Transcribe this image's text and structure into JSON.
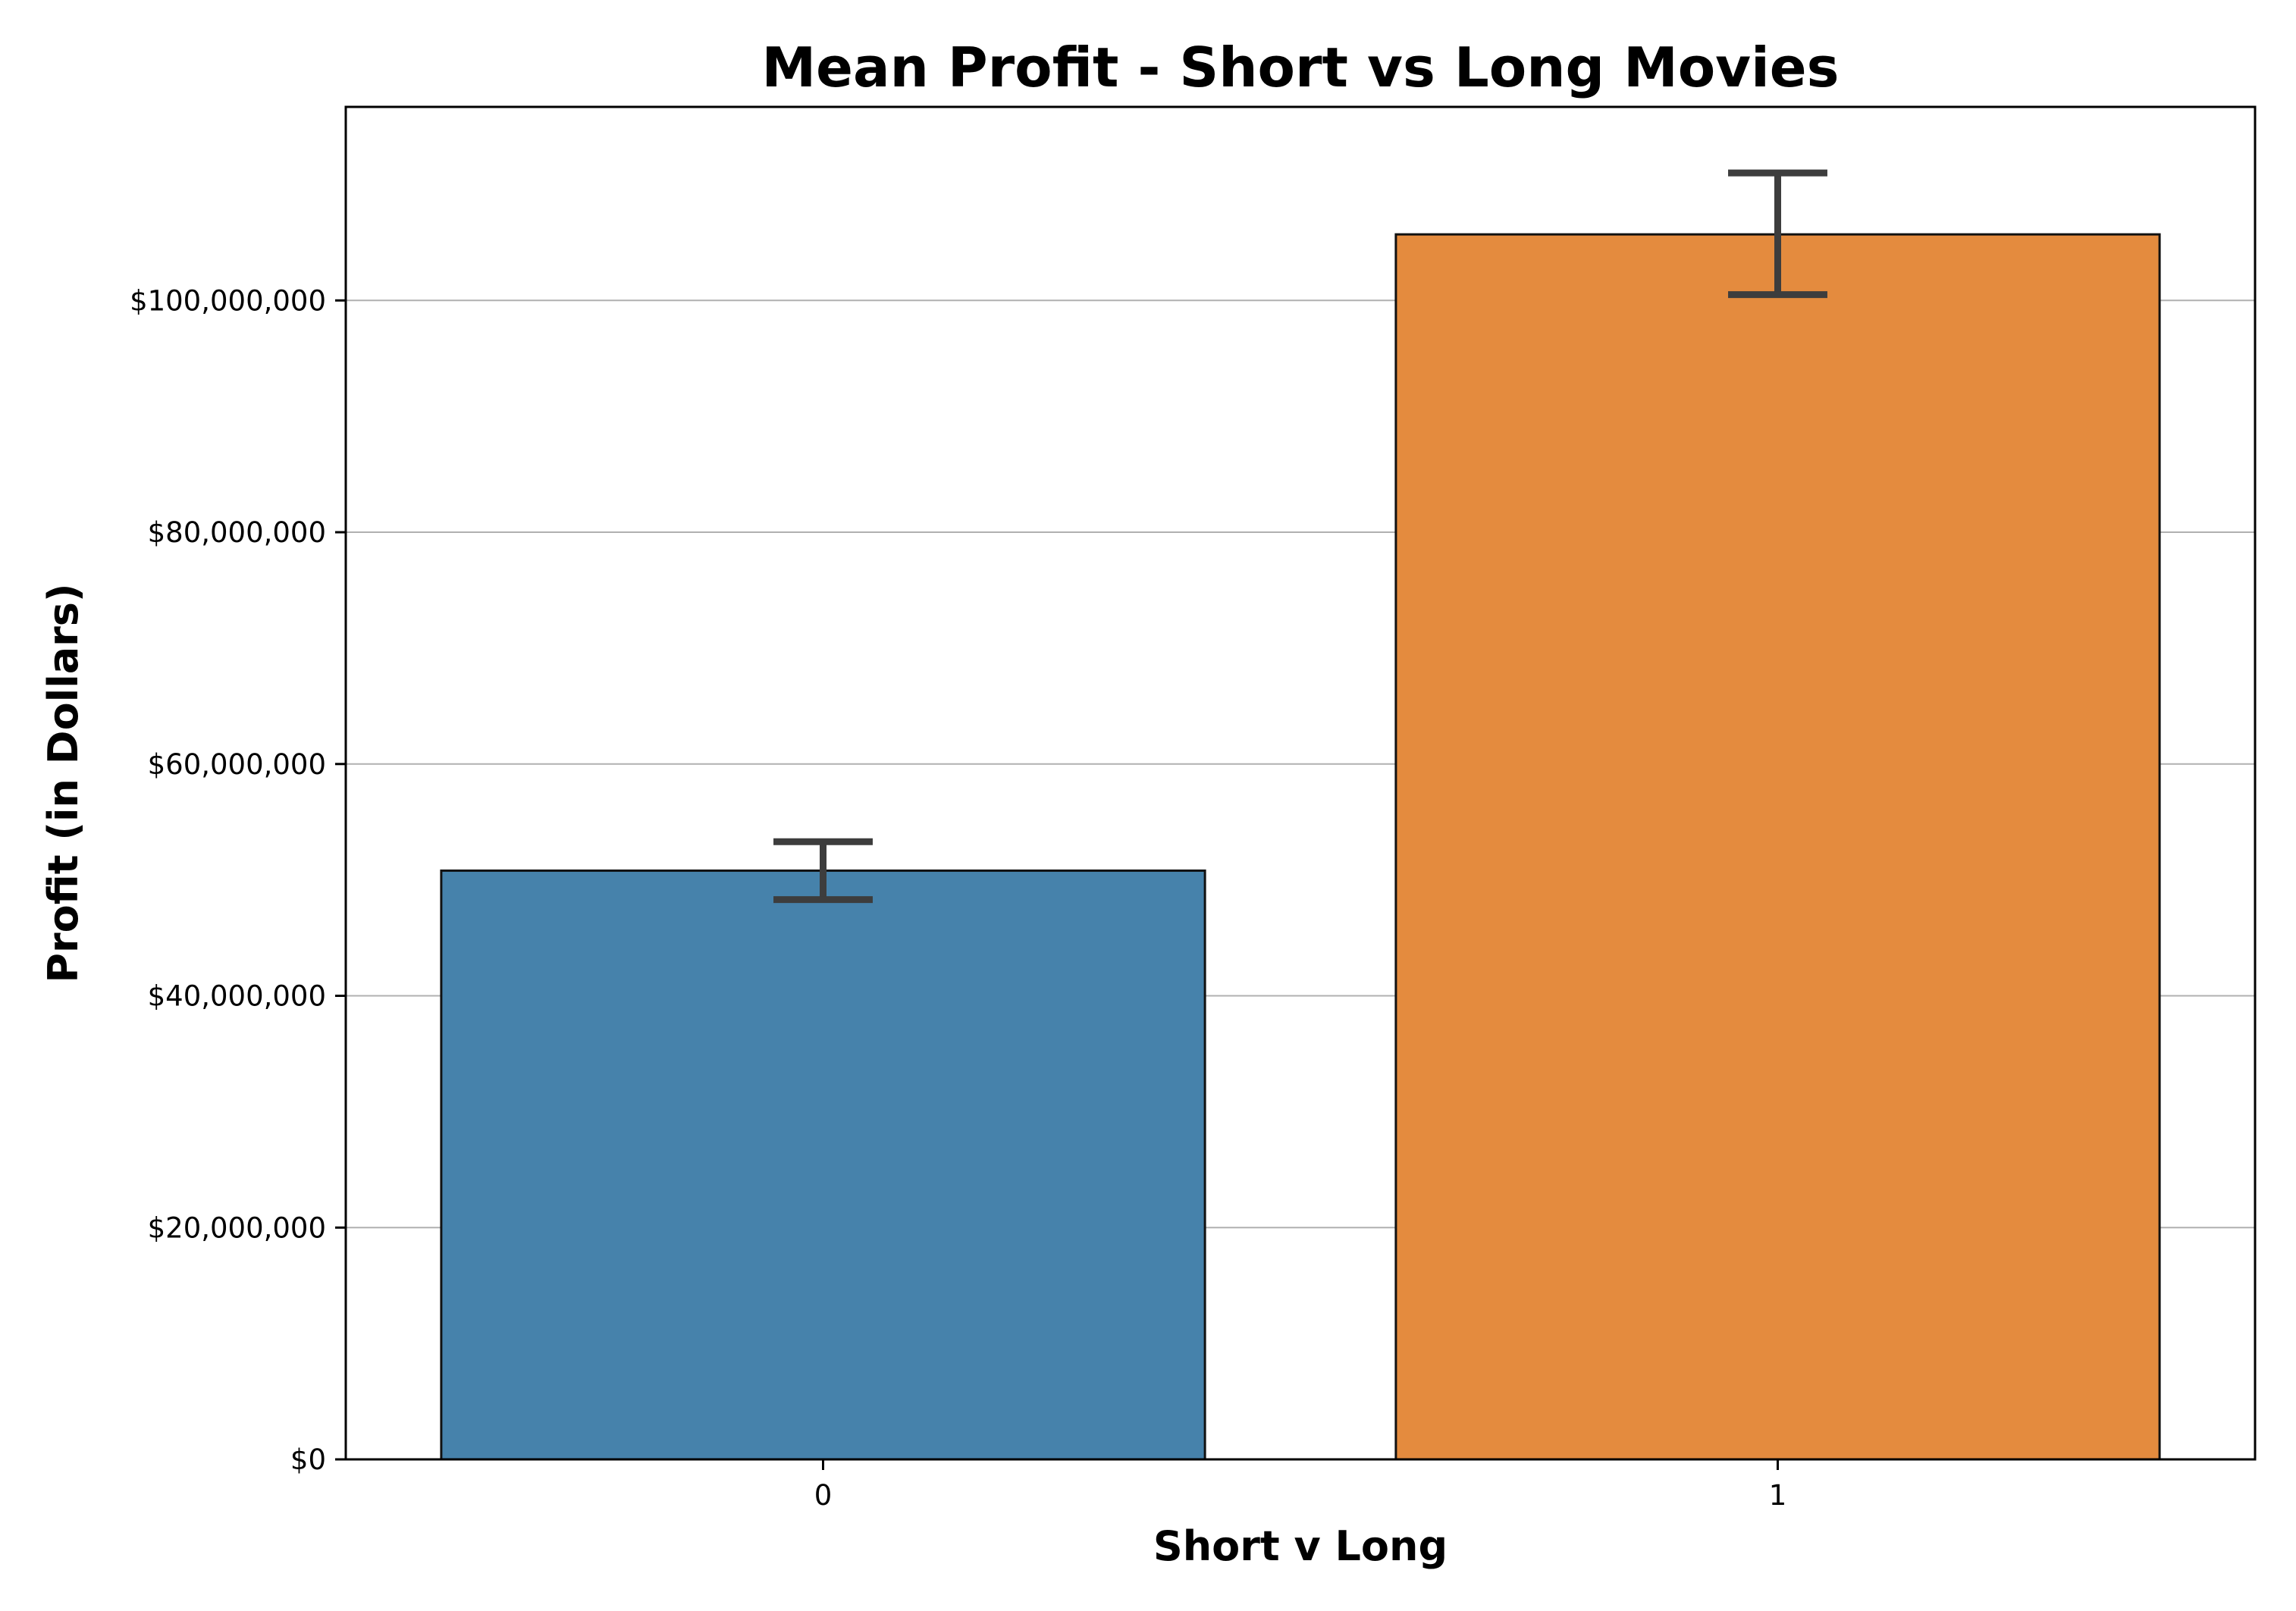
{
  "chart_data": {
    "type": "bar",
    "title": "Mean Profit - Short vs Long Movies",
    "xlabel": "Short v Long",
    "ylabel": "Profit (in Dollars)",
    "categories": [
      "0",
      "1"
    ],
    "values": [
      50800000,
      105700000
    ],
    "error_bars": [
      {
        "low": 48300000,
        "high": 53300000
      },
      {
        "low": 100500000,
        "high": 111000000
      }
    ],
    "colors": [
      "#4682ab",
      "#e48b3e"
    ],
    "ylim": [
      0,
      116700000
    ],
    "yticks": [
      0,
      20000000,
      40000000,
      60000000,
      80000000,
      100000000
    ],
    "ytick_labels": [
      "$0",
      "$20,000,000",
      "$40,000,000",
      "$60,000,000",
      "$80,000,000",
      "$100,000,000"
    ],
    "grid": "horizontal",
    "legend": "none"
  }
}
